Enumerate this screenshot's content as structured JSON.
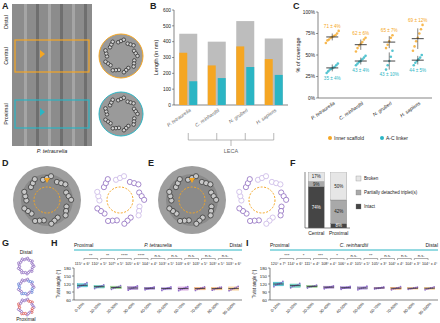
{
  "labels": {
    "panels": [
      "A",
      "B",
      "C",
      "D",
      "E",
      "F",
      "G",
      "H",
      "I"
    ],
    "a_distal": "Distal",
    "a_central": "Central",
    "a_proximal": "Proximal",
    "a_species": "P. tetraurelia",
    "b_tree_root": "LECA",
    "g_distal": "Distal",
    "g_proximal": "Proximal"
  },
  "chart_data": [
    {
      "type": "bar",
      "y_label": "Length (in nm)",
      "categories": [
        "P. tetraurelia",
        "C. reinhardtii",
        "N. gruberi",
        "H. sapiens"
      ],
      "ylim": [
        0,
        600
      ],
      "yticks": [
        0,
        100,
        200,
        300,
        400,
        500,
        600
      ],
      "series": [
        {
          "color": "#bdbdbd",
          "values": [
            450,
            400,
            530,
            420
          ]
        },
        {
          "color": "#f5a623",
          "values": [
            330,
            250,
            370,
            290
          ]
        },
        {
          "color": "#2bb5c4",
          "values": [
            150,
            170,
            240,
            190
          ]
        }
      ]
    },
    {
      "type": "scatter",
      "y_label": "% of coverage",
      "categories": [
        "P. tetraurelia",
        "C. reinhardtii",
        "N. gruberi",
        "H. sapiens"
      ],
      "ylim": [
        0,
        100
      ],
      "yticks": [
        {
          "value": 0,
          "label": "0%"
        },
        {
          "value": 25,
          "label": "25%"
        },
        {
          "value": 50,
          "label": "50%"
        },
        {
          "value": 75,
          "label": "75%"
        },
        {
          "value": 100,
          "label": "100%"
        }
      ],
      "legend": "bottom",
      "series": [
        {
          "name": "Inner scaffold",
          "color": "#f5a623",
          "values": [
            71,
            62,
            65,
            69
          ],
          "errors": [
            4,
            6,
            7,
            12
          ],
          "value_labels": [
            "71 ± 4%",
            "62 ± 6%",
            "65 ± 7%",
            "69 ± 12%"
          ],
          "points": [
            [
              64,
              67,
              68,
              70,
              71,
              72,
              73,
              75,
              78
            ],
            [
              54,
              58,
              61,
              63,
              65,
              68,
              70
            ],
            [
              58,
              62,
              66,
              70,
              73
            ],
            [
              55,
              60,
              66,
              70,
              75,
              80,
              85
            ]
          ]
        },
        {
          "name": "A-C linker",
          "color": "#2bb5c4",
          "values": [
            35,
            43,
            43,
            44
          ],
          "errors": [
            4,
            4,
            10,
            5
          ],
          "value_labels": [
            "35 ± 4%",
            "43 ± 4%",
            "43 ± 10%",
            "44 ± 5%"
          ],
          "points": [
            [
              29,
              31,
              33,
              34,
              35,
              36,
              38,
              40
            ],
            [
              38,
              40,
              42,
              43,
              45,
              47,
              49
            ],
            [
              33,
              38,
              43,
              48,
              55
            ],
            [
              38,
              41,
              43,
              45,
              47,
              50
            ]
          ]
        }
      ]
    },
    {
      "type": "bar",
      "stacked": true,
      "categories": [
        "Central",
        "Proximal"
      ],
      "ylim": [
        0,
        100
      ],
      "tick_labels": "x",
      "data_labels": true,
      "legend": "right",
      "series": [
        {
          "name": "Intact",
          "color": "#454545",
          "values": [
            74,
            8
          ],
          "value_labels": [
            "74%",
            "8%"
          ]
        },
        {
          "name": "Partially detached triplet(s)",
          "color": "#a9a9a9",
          "values": [
            9,
            42
          ],
          "value_labels": [
            "9%",
            "42%"
          ]
        },
        {
          "name": "Broken",
          "color": "#e6e6e6",
          "values": [
            17,
            50
          ],
          "value_labels": [
            "17%",
            "50%"
          ]
        }
      ]
    },
    {
      "type": "box",
      "title": "P. tetraurelia",
      "y_label": "Twist angle (°)",
      "x_start_label": "Proximal",
      "x_end_label": "Distal",
      "categories": [
        "0-10%",
        "10-20%",
        "20-30%",
        "30-40%",
        "40-50%",
        "50-60%",
        "60-70%",
        "70-80%",
        "80-90%",
        "90-100%"
      ],
      "ylim": [
        60,
        180
      ],
      "yticks": [
        60,
        90,
        120,
        150,
        180
      ],
      "data_labels": true,
      "values": [
        115,
        110,
        107,
        105,
        104,
        103,
        103,
        103,
        103,
        103
      ],
      "errors": [
        6,
        5,
        5,
        6,
        4,
        5,
        6,
        5,
        5,
        6
      ],
      "value_labels": [
        "115° ± 6°",
        "110° ± 5°",
        "107° ± 5°",
        "105° ± 6°",
        "104° ± 4°",
        "103° ± 5°",
        "103° ± 6°",
        "103° ± 5°",
        "103° ± 5°",
        "103° ± 6°"
      ],
      "color": "#7e57c2",
      "colors": [
        "#26b3c4",
        "#3fbfa8",
        "#7cc576",
        "#a07cc5",
        "#9575cd",
        "#b39ddb",
        "#ce93d8",
        "#f4a261",
        "#f6b26b",
        "#f7c27a"
      ],
      "points": [
        [
          106,
          110,
          114,
          116,
          120,
          125
        ],
        [
          103,
          107,
          109,
          111,
          113,
          117
        ],
        [
          100,
          104,
          106,
          108,
          110,
          114
        ],
        [
          97,
          101,
          104,
          106,
          109,
          113
        ],
        [
          98,
          101,
          103,
          105,
          106,
          109
        ],
        [
          96,
          100,
          102,
          104,
          106,
          109
        ],
        [
          95,
          99,
          102,
          104,
          107,
          110
        ],
        [
          96,
          100,
          102,
          104,
          106,
          109
        ],
        [
          97,
          99,
          103,
          104,
          107,
          108
        ],
        [
          95,
          98,
          102,
          104,
          107,
          111
        ]
      ],
      "significance": [
        "**",
        "**",
        "****",
        "****",
        "n.s.",
        "n.s.",
        "n.s.",
        "n.s.",
        "n.s."
      ]
    },
    {
      "type": "box",
      "title": "C. reinhardtii",
      "y_label": "Twist angle (°)",
      "x_start_label": "Proximal",
      "x_end_label": "Distal",
      "categories": [
        "0-10%",
        "10-20%",
        "20-30%",
        "30-40%",
        "40-50%",
        "50-60%",
        "60-70%",
        "70-80%",
        "80-90%",
        "90-100%"
      ],
      "ylim": [
        60,
        180
      ],
      "yticks": [
        60,
        90,
        120,
        150,
        180
      ],
      "data_labels": true,
      "values": [
        120,
        114,
        111,
        108,
        106,
        105,
        105,
        104,
        104,
        104
      ],
      "errors": [
        7,
        6,
        4,
        4,
        4,
        5,
        3,
        4,
        3,
        4
      ],
      "value_labels": [
        "120° ± 7°",
        "114° ± 6°",
        "111° ± 4°",
        "108° ± 4°",
        "106° ± 4°",
        "105° ± 5°",
        "105° ± 3°",
        "104° ± 4°",
        "104° ± 3°",
        "104° ± 4°"
      ],
      "color": "#7e57c2",
      "colors": [
        "#26b3c4",
        "#3fbfa8",
        "#7cc576",
        "#a07cc5",
        "#9575cd",
        "#b39ddb",
        "#ce93d8",
        "#f4a261",
        "#f6b26b",
        "#f7c27a"
      ],
      "points": [
        [
          110,
          116,
          119,
          121,
          124,
          130
        ],
        [
          106,
          111,
          113,
          115,
          117,
          122
        ],
        [
          105,
          109,
          110,
          112,
          113,
          116
        ],
        [
          102,
          106,
          107,
          109,
          110,
          113
        ],
        [
          100,
          104,
          105,
          107,
          108,
          111
        ],
        [
          98,
          102,
          104,
          106,
          107,
          112
        ],
        [
          101,
          103,
          104,
          105,
          107,
          109
        ],
        [
          98,
          102,
          103,
          105,
          106,
          110
        ],
        [
          100,
          102,
          103,
          105,
          106,
          108
        ],
        [
          98,
          101,
          103,
          105,
          106,
          109
        ]
      ],
      "significance": [
        "***",
        "*",
        "***",
        "*",
        "n.s.",
        "**",
        "n.s.",
        "n.s.",
        "n.s."
      ]
    }
  ]
}
